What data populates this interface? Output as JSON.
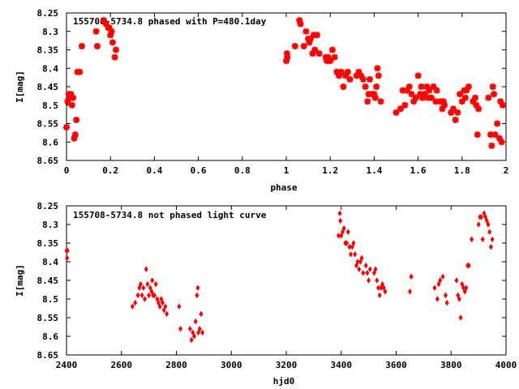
{
  "chart_data": [
    {
      "type": "scatter",
      "title": "155708-5734.8 phased with P=480.1day",
      "xlabel": "phase",
      "ylabel": "I[mag]",
      "xlim": [
        0,
        2
      ],
      "ylim": [
        8.25,
        8.65
      ],
      "y_inverted": true,
      "x_ticks": [
        "0",
        "0.2",
        "0.4",
        "0.6",
        "0.8",
        "1",
        "1.2",
        "1.4",
        "1.6",
        "1.8",
        "2"
      ],
      "y_ticks": [
        "8.25",
        "8.3",
        "8.35",
        "8.4",
        "8.45",
        "8.5",
        "8.55",
        "8.6",
        "8.65"
      ],
      "marker_color": "#ff0000",
      "points": [
        [
          0.0,
          8.56
        ],
        [
          0.005,
          8.49
        ],
        [
          0.01,
          8.47
        ],
        [
          0.015,
          8.48
        ],
        [
          0.02,
          8.47
        ],
        [
          0.025,
          8.5
        ],
        [
          0.03,
          8.48
        ],
        [
          0.035,
          8.59
        ],
        [
          0.04,
          8.58
        ],
        [
          0.045,
          8.54
        ],
        [
          0.05,
          8.41
        ],
        [
          0.06,
          8.41
        ],
        [
          0.07,
          8.34
        ],
        [
          0.135,
          8.3
        ],
        [
          0.14,
          8.34
        ],
        [
          0.17,
          8.27
        ],
        [
          0.18,
          8.28
        ],
        [
          0.19,
          8.29
        ],
        [
          0.195,
          8.29
        ],
        [
          0.2,
          8.31
        ],
        [
          0.205,
          8.3
        ],
        [
          0.21,
          8.33
        ],
        [
          0.22,
          8.37
        ],
        [
          0.225,
          8.35
        ],
        [
          1.0,
          8.38
        ],
        [
          1.003,
          8.36
        ],
        [
          1.005,
          8.37
        ],
        [
          1.04,
          8.34
        ],
        [
          1.06,
          8.27
        ],
        [
          1.065,
          8.28
        ],
        [
          1.08,
          8.34
        ],
        [
          1.09,
          8.3
        ],
        [
          1.1,
          8.32
        ],
        [
          1.105,
          8.33
        ],
        [
          1.11,
          8.32
        ],
        [
          1.12,
          8.36
        ],
        [
          1.125,
          8.31
        ],
        [
          1.13,
          8.35
        ],
        [
          1.14,
          8.31
        ],
        [
          1.15,
          8.36
        ],
        [
          1.18,
          8.37
        ],
        [
          1.185,
          8.38
        ],
        [
          1.19,
          8.37
        ],
        [
          1.2,
          8.38
        ],
        [
          1.21,
          8.35
        ],
        [
          1.22,
          8.37
        ],
        [
          1.23,
          8.41
        ],
        [
          1.24,
          8.42
        ],
        [
          1.25,
          8.41
        ],
        [
          1.26,
          8.45
        ],
        [
          1.27,
          8.42
        ],
        [
          1.28,
          8.41
        ],
        [
          1.29,
          8.43
        ],
        [
          1.32,
          8.42
        ],
        [
          1.33,
          8.41
        ],
        [
          1.34,
          8.42
        ],
        [
          1.35,
          8.43
        ],
        [
          1.36,
          8.45
        ],
        [
          1.37,
          8.49
        ],
        [
          1.375,
          8.47
        ],
        [
          1.38,
          8.43
        ],
        [
          1.39,
          8.47
        ],
        [
          1.4,
          8.47
        ],
        [
          1.405,
          8.48
        ],
        [
          1.41,
          8.45
        ],
        [
          1.415,
          8.4
        ],
        [
          1.42,
          8.42
        ],
        [
          1.43,
          8.49
        ],
        [
          1.5,
          8.52
        ],
        [
          1.52,
          8.51
        ],
        [
          1.53,
          8.46
        ],
        [
          1.54,
          8.5
        ],
        [
          1.55,
          8.46
        ],
        [
          1.56,
          8.45
        ],
        [
          1.57,
          8.47
        ],
        [
          1.58,
          8.49
        ],
        [
          1.59,
          8.48
        ],
        [
          1.6,
          8.42
        ],
        [
          1.61,
          8.47
        ],
        [
          1.615,
          8.45
        ],
        [
          1.62,
          8.48
        ],
        [
          1.63,
          8.47
        ],
        [
          1.64,
          8.45
        ],
        [
          1.645,
          8.48
        ],
        [
          1.65,
          8.46
        ],
        [
          1.66,
          8.48
        ],
        [
          1.67,
          8.45
        ],
        [
          1.68,
          8.49
        ],
        [
          1.685,
          8.46
        ],
        [
          1.7,
          8.49
        ],
        [
          1.71,
          8.51
        ],
        [
          1.715,
          8.49
        ],
        [
          1.72,
          8.5
        ],
        [
          1.75,
          8.52
        ],
        [
          1.76,
          8.51
        ],
        [
          1.77,
          8.54
        ],
        [
          1.78,
          8.52
        ],
        [
          1.79,
          8.47
        ],
        [
          1.8,
          8.49
        ],
        [
          1.81,
          8.46
        ],
        [
          1.815,
          8.48
        ],
        [
          1.82,
          8.46
        ],
        [
          1.83,
          8.45
        ],
        [
          1.85,
          8.49
        ],
        [
          1.86,
          8.48
        ],
        [
          1.865,
          8.5
        ],
        [
          1.87,
          8.58
        ],
        [
          1.875,
          8.51
        ],
        [
          1.92,
          8.48
        ],
        [
          1.93,
          8.58
        ],
        [
          1.935,
          8.61
        ],
        [
          1.94,
          8.45
        ],
        [
          1.945,
          8.47
        ],
        [
          1.95,
          8.58
        ],
        [
          1.96,
          8.55
        ],
        [
          1.97,
          8.59
        ],
        [
          1.975,
          8.49
        ],
        [
          1.98,
          8.6
        ],
        [
          1.985,
          8.5
        ]
      ]
    },
    {
      "type": "scatter",
      "title": "155708-5734.8 not phased light curve",
      "xlabel": "hjd0",
      "ylabel": "I[mag]",
      "xlim": [
        2400,
        4000
      ],
      "ylim": [
        8.25,
        8.65
      ],
      "y_inverted": true,
      "x_ticks": [
        "2400",
        "2600",
        "2800",
        "3000",
        "3200",
        "3400",
        "3600",
        "3800",
        "4000"
      ],
      "y_ticks": [
        "8.25",
        "8.3",
        "8.35",
        "8.4",
        "8.45",
        "8.5",
        "8.55",
        "8.6",
        "8.65"
      ],
      "marker_color": "#ff0000",
      "points": [
        [
          2400,
          8.37
        ],
        [
          2402,
          8.39
        ],
        [
          2404,
          8.37
        ],
        [
          2640,
          8.52
        ],
        [
          2650,
          8.51
        ],
        [
          2660,
          8.49
        ],
        [
          2665,
          8.47
        ],
        [
          2670,
          8.46
        ],
        [
          2675,
          8.49
        ],
        [
          2680,
          8.47
        ],
        [
          2685,
          8.5
        ],
        [
          2690,
          8.42
        ],
        [
          2695,
          8.46
        ],
        [
          2700,
          8.49
        ],
        [
          2705,
          8.47
        ],
        [
          2710,
          8.48
        ],
        [
          2712,
          8.45
        ],
        [
          2715,
          8.49
        ],
        [
          2720,
          8.49
        ],
        [
          2725,
          8.46
        ],
        [
          2730,
          8.5
        ],
        [
          2735,
          8.51
        ],
        [
          2740,
          8.52
        ],
        [
          2745,
          8.5
        ],
        [
          2750,
          8.51
        ],
        [
          2755,
          8.53
        ],
        [
          2760,
          8.52
        ],
        [
          2765,
          8.54
        ],
        [
          2810,
          8.52
        ],
        [
          2815,
          8.58
        ],
        [
          2850,
          8.58
        ],
        [
          2855,
          8.61
        ],
        [
          2860,
          8.59
        ],
        [
          2865,
          8.6
        ],
        [
          2870,
          8.56
        ],
        [
          2875,
          8.49
        ],
        [
          2878,
          8.47
        ],
        [
          2880,
          8.59
        ],
        [
          2885,
          8.58
        ],
        [
          2890,
          8.54
        ],
        [
          2895,
          8.59
        ],
        [
          3390,
          8.33
        ],
        [
          3395,
          8.27
        ],
        [
          3397,
          8.29
        ],
        [
          3400,
          8.33
        ],
        [
          3405,
          8.32
        ],
        [
          3410,
          8.31
        ],
        [
          3415,
          8.35
        ],
        [
          3420,
          8.35
        ],
        [
          3425,
          8.32
        ],
        [
          3430,
          8.36
        ],
        [
          3435,
          8.38
        ],
        [
          3440,
          8.36
        ],
        [
          3445,
          8.35
        ],
        [
          3450,
          8.38
        ],
        [
          3455,
          8.41
        ],
        [
          3460,
          8.4
        ],
        [
          3465,
          8.42
        ],
        [
          3470,
          8.4
        ],
        [
          3475,
          8.39
        ],
        [
          3480,
          8.43
        ],
        [
          3490,
          8.41
        ],
        [
          3495,
          8.43
        ],
        [
          3500,
          8.45
        ],
        [
          3505,
          8.42
        ],
        [
          3520,
          8.43
        ],
        [
          3525,
          8.42
        ],
        [
          3530,
          8.45
        ],
        [
          3535,
          8.47
        ],
        [
          3540,
          8.49
        ],
        [
          3545,
          8.47
        ],
        [
          3550,
          8.46
        ],
        [
          3555,
          8.47
        ],
        [
          3560,
          8.48
        ],
        [
          3650,
          8.48
        ],
        [
          3655,
          8.44
        ],
        [
          3740,
          8.47
        ],
        [
          3750,
          8.5
        ],
        [
          3755,
          8.46
        ],
        [
          3760,
          8.45
        ],
        [
          3770,
          8.44
        ],
        [
          3780,
          8.49
        ],
        [
          3785,
          8.51
        ],
        [
          3820,
          8.45
        ],
        [
          3825,
          8.49
        ],
        [
          3830,
          8.5
        ],
        [
          3835,
          8.55
        ],
        [
          3840,
          8.46
        ],
        [
          3845,
          8.47
        ],
        [
          3850,
          8.48
        ],
        [
          3855,
          8.47
        ],
        [
          3860,
          8.41
        ],
        [
          3865,
          8.41
        ],
        [
          3875,
          8.34
        ],
        [
          3900,
          8.3
        ],
        [
          3905,
          8.28
        ],
        [
          3910,
          8.28
        ],
        [
          3915,
          8.34
        ],
        [
          3920,
          8.27
        ],
        [
          3925,
          8.28
        ],
        [
          3930,
          8.29
        ],
        [
          3935,
          8.3
        ],
        [
          3940,
          8.32
        ],
        [
          3945,
          8.36
        ],
        [
          3950,
          8.34
        ]
      ]
    }
  ]
}
